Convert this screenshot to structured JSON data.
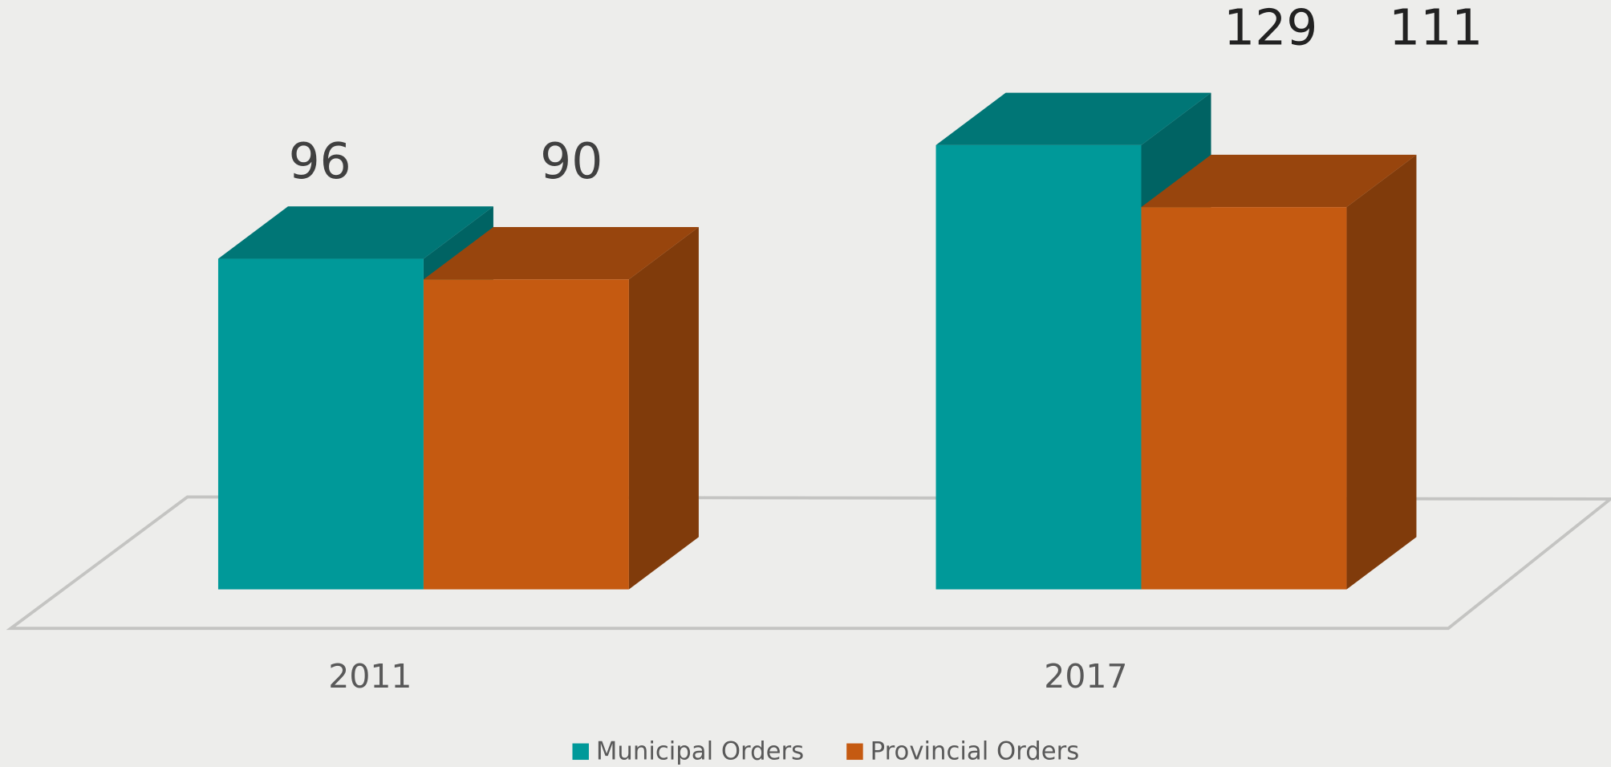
{
  "chart_data": {
    "type": "bar",
    "categories": [
      "2011",
      "2017"
    ],
    "series": [
      {
        "name": "Municipal Orders",
        "color": "#009999",
        "values": [
          96,
          129
        ]
      },
      {
        "name": "Provincial Orders",
        "color": "#c55a11",
        "values": [
          90,
          111
        ]
      }
    ],
    "legend": "bottom"
  }
}
